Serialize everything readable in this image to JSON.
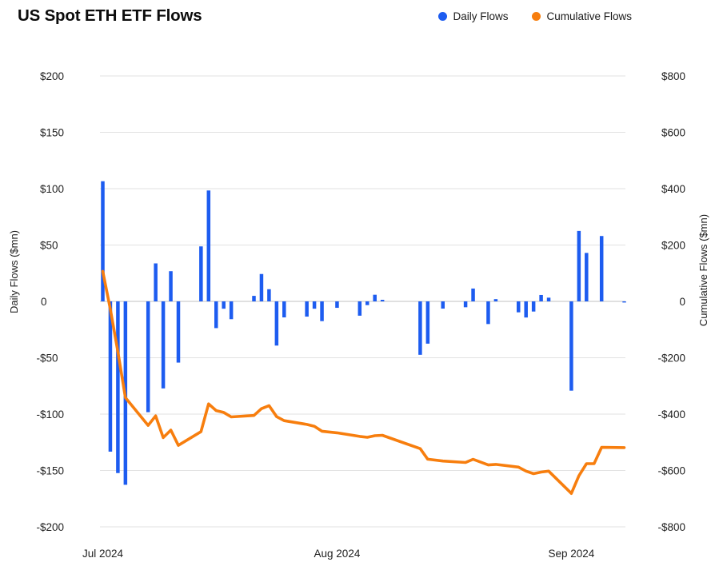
{
  "title": "US Spot ETH ETF Flows",
  "legend": [
    {
      "label": "Daily Flows",
      "color": "#1d5cf0"
    },
    {
      "label": "Cumulative Flows",
      "color": "#f77e0e"
    }
  ],
  "colors": {
    "daily_bar": "#1d5cf0",
    "cumulative_line": "#f77e0e",
    "grid": "#e2e2e2",
    "zero_line": "#c2c2c2",
    "tick_text": "#1f1f1f",
    "background": "#ffffff"
  },
  "chart_data": {
    "type": "combo",
    "title": "US Spot ETH ETF Flows",
    "x_axis": {
      "ticks": [
        {
          "label": "Jul 2024",
          "dayOffset": 0
        },
        {
          "label": "Aug 2024",
          "dayOffset": 31
        },
        {
          "label": "Sep 2024",
          "dayOffset": 62
        }
      ]
    },
    "y_axis_left": {
      "label": "Daily Flows ($mn)",
      "min": -200,
      "max": 200,
      "ticks": [
        {
          "label": "$200",
          "value": 200
        },
        {
          "label": "$150",
          "value": 150
        },
        {
          "label": "$100",
          "value": 100
        },
        {
          "label": "$50",
          "value": 50
        },
        {
          "label": "0",
          "value": 0
        },
        {
          "label": "-$50",
          "value": -50
        },
        {
          "label": "-$100",
          "value": -100
        },
        {
          "label": "-$150",
          "value": -150
        },
        {
          "label": "-$200",
          "value": -200
        }
      ]
    },
    "y_axis_right": {
      "label": "Cumulative Flows ($mn)",
      "min": -800,
      "max": 800,
      "ticks": [
        {
          "label": "$800",
          "value": 800
        },
        {
          "label": "$600",
          "value": 600
        },
        {
          "label": "$400",
          "value": 400
        },
        {
          "label": "$200",
          "value": 200
        },
        {
          "label": "0",
          "value": 0
        },
        {
          "label": "-$200",
          "value": -200
        },
        {
          "label": "-$400",
          "value": -400
        },
        {
          "label": "-$600",
          "value": -600
        },
        {
          "label": "-$800",
          "value": -800
        }
      ]
    },
    "series": [
      {
        "name": "Daily Flows",
        "type": "bar",
        "axis": "left",
        "points": [
          {
            "date": "Jul 23",
            "d": 0,
            "value": 106.6
          },
          {
            "date": "Jul 24",
            "d": 1,
            "value": -133.3
          },
          {
            "date": "Jul 25",
            "d": 2,
            "value": -152.3
          },
          {
            "date": "Jul 26",
            "d": 3,
            "value": -162.7
          },
          {
            "date": "Jul 29",
            "d": 6,
            "value": -98.3
          },
          {
            "date": "Jul 30",
            "d": 7,
            "value": 33.7
          },
          {
            "date": "Jul 31",
            "d": 8,
            "value": -77.2
          },
          {
            "date": "Aug 1",
            "d": 9,
            "value": 26.8
          },
          {
            "date": "Aug 2",
            "d": 10,
            "value": -54.3
          },
          {
            "date": "Aug 5",
            "d": 13,
            "value": 48.8
          },
          {
            "date": "Aug 6",
            "d": 14,
            "value": 98.4
          },
          {
            "date": "Aug 7",
            "d": 15,
            "value": -23.7
          },
          {
            "date": "Aug 8",
            "d": 16,
            "value": -6.5
          },
          {
            "date": "Aug 9",
            "d": 17,
            "value": -15.8
          },
          {
            "date": "Aug 12",
            "d": 20,
            "value": 4.9
          },
          {
            "date": "Aug 13",
            "d": 21,
            "value": 24.3
          },
          {
            "date": "Aug 14",
            "d": 22,
            "value": 10.8
          },
          {
            "date": "Aug 15",
            "d": 23,
            "value": -39.2
          },
          {
            "date": "Aug 16",
            "d": 24,
            "value": -14.2
          },
          {
            "date": "Aug 19",
            "d": 27,
            "value": -13.5
          },
          {
            "date": "Aug 20",
            "d": 28,
            "value": -6.5
          },
          {
            "date": "Aug 21",
            "d": 29,
            "value": -17.5
          },
          {
            "date": "Aug 23",
            "d": 31,
            "value": -5.7
          },
          {
            "date": "Aug 26",
            "d": 34,
            "value": -12.7
          },
          {
            "date": "Aug 27",
            "d": 35,
            "value": -3.3
          },
          {
            "date": "Aug 28",
            "d": 36,
            "value": 5.9
          },
          {
            "date": "Aug 29",
            "d": 37,
            "value": 1.4
          },
          {
            "date": "Sep 3",
            "d": 42,
            "value": -47.4
          },
          {
            "date": "Sep 4",
            "d": 43,
            "value": -37.5
          },
          {
            "date": "Sep 6",
            "d": 45,
            "value": -6.4
          },
          {
            "date": "Sep 9",
            "d": 48,
            "value": -5.2
          },
          {
            "date": "Sep 10",
            "d": 49,
            "value": 11.4
          },
          {
            "date": "Sep 12",
            "d": 51,
            "value": -20.1
          },
          {
            "date": "Sep 13",
            "d": 52,
            "value": 2.0
          },
          {
            "date": "Sep 16",
            "d": 55,
            "value": -9.7
          },
          {
            "date": "Sep 17",
            "d": 56,
            "value": -14.3
          },
          {
            "date": "Sep 18",
            "d": 57,
            "value": -9.0
          },
          {
            "date": "Sep 19",
            "d": 58,
            "value": 5.7
          },
          {
            "date": "Sep 20",
            "d": 59,
            "value": 3.3
          },
          {
            "date": "Sep 23",
            "d": 62,
            "value": -79.2
          },
          {
            "date": "Sep 24",
            "d": 63,
            "value": 62.5
          },
          {
            "date": "Sep 25",
            "d": 64,
            "value": 43.0
          },
          {
            "date": "Sep 26",
            "d": 65,
            "value": 0.0
          },
          {
            "date": "Sep 27",
            "d": 66,
            "value": 58.0
          },
          {
            "date": "Sep 30",
            "d": 69,
            "value": -1.0
          }
        ]
      },
      {
        "name": "Cumulative Flows",
        "type": "line",
        "axis": "right",
        "derived": "running_sum_of_daily_flows"
      }
    ]
  }
}
